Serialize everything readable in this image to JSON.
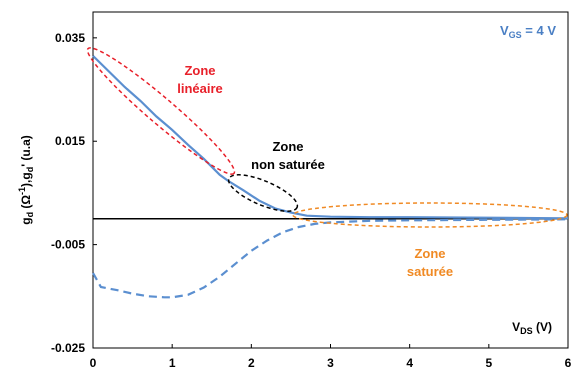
{
  "chart_data": {
    "type": "line",
    "annotation_vgs": "V",
    "annotation_vgs_sub": "GS",
    "annotation_vgs_value": " = 4 V",
    "xlabel_main": "V",
    "xlabel_sub": "DS",
    "xlabel_unit": " (V)",
    "ylabel": "g",
    "ylabel_sub1": "d",
    "ylabel_mid1": " (Ω",
    "ylabel_sup": "-1",
    "ylabel_mid2": "),g",
    "ylabel_sub2": "d",
    "ylabel_end": "' (u.a)",
    "xlim": [
      0,
      6
    ],
    "ylim": [
      -0.025,
      0.04
    ],
    "x_ticks": [
      "0",
      "1",
      "2",
      "3",
      "4",
      "5",
      "6"
    ],
    "x_tick_values": [
      0,
      1,
      2,
      3,
      4,
      5,
      6
    ],
    "y_ticks": [
      "0.035",
      "0.015",
      "-0.005",
      "-0.025"
    ],
    "y_tick_values": [
      0.035,
      0.015,
      -0.005,
      -0.025
    ],
    "colors": {
      "curve": "#5b8fd0",
      "zone_lineaire": "#e8202a",
      "zone_non_saturee": "#000000",
      "zone_saturee": "#f08a24",
      "annotation": "#4a7fc4"
    },
    "zones": [
      {
        "label_line1": "Zone",
        "label_line2": "linéaire",
        "color": "#e8202a"
      },
      {
        "label_line1": "Zone",
        "label_line2": "non saturée",
        "color": "#000000"
      },
      {
        "label_line1": "Zone",
        "label_line2": "saturée",
        "color": "#f08a24"
      }
    ],
    "series": [
      {
        "style": "solid",
        "x": [
          0,
          0.2,
          0.4,
          0.6,
          0.8,
          1.0,
          1.2,
          1.4,
          1.6,
          1.7,
          1.9,
          2.1,
          2.3,
          2.5,
          2.7,
          3.0,
          3.5,
          4.0,
          5.0,
          6.0
        ],
        "y": [
          0.0315,
          0.0285,
          0.0255,
          0.0228,
          0.0198,
          0.0172,
          0.0143,
          0.0116,
          0.0085,
          0.0074,
          0.0055,
          0.0035,
          0.002,
          0.0012,
          0.0006,
          0.0004,
          0.0003,
          0.0003,
          0.0002,
          0.0001
        ]
      },
      {
        "style": "dashed",
        "x": [
          0,
          0.1,
          0.3,
          0.5,
          0.7,
          0.9,
          1.0,
          1.2,
          1.4,
          1.6,
          1.8,
          2.0,
          2.2,
          2.4,
          2.6,
          2.8,
          3.0,
          3.5,
          4.0,
          5.0,
          6.0
        ],
        "y": [
          -0.0105,
          -0.0132,
          -0.0138,
          -0.0145,
          -0.015,
          -0.0152,
          -0.0152,
          -0.0147,
          -0.0133,
          -0.0112,
          -0.0087,
          -0.0062,
          -0.0042,
          -0.0026,
          -0.0016,
          -0.001,
          -0.0007,
          -0.0004,
          -0.0003,
          -0.0002,
          -0.0001
        ]
      }
    ]
  }
}
